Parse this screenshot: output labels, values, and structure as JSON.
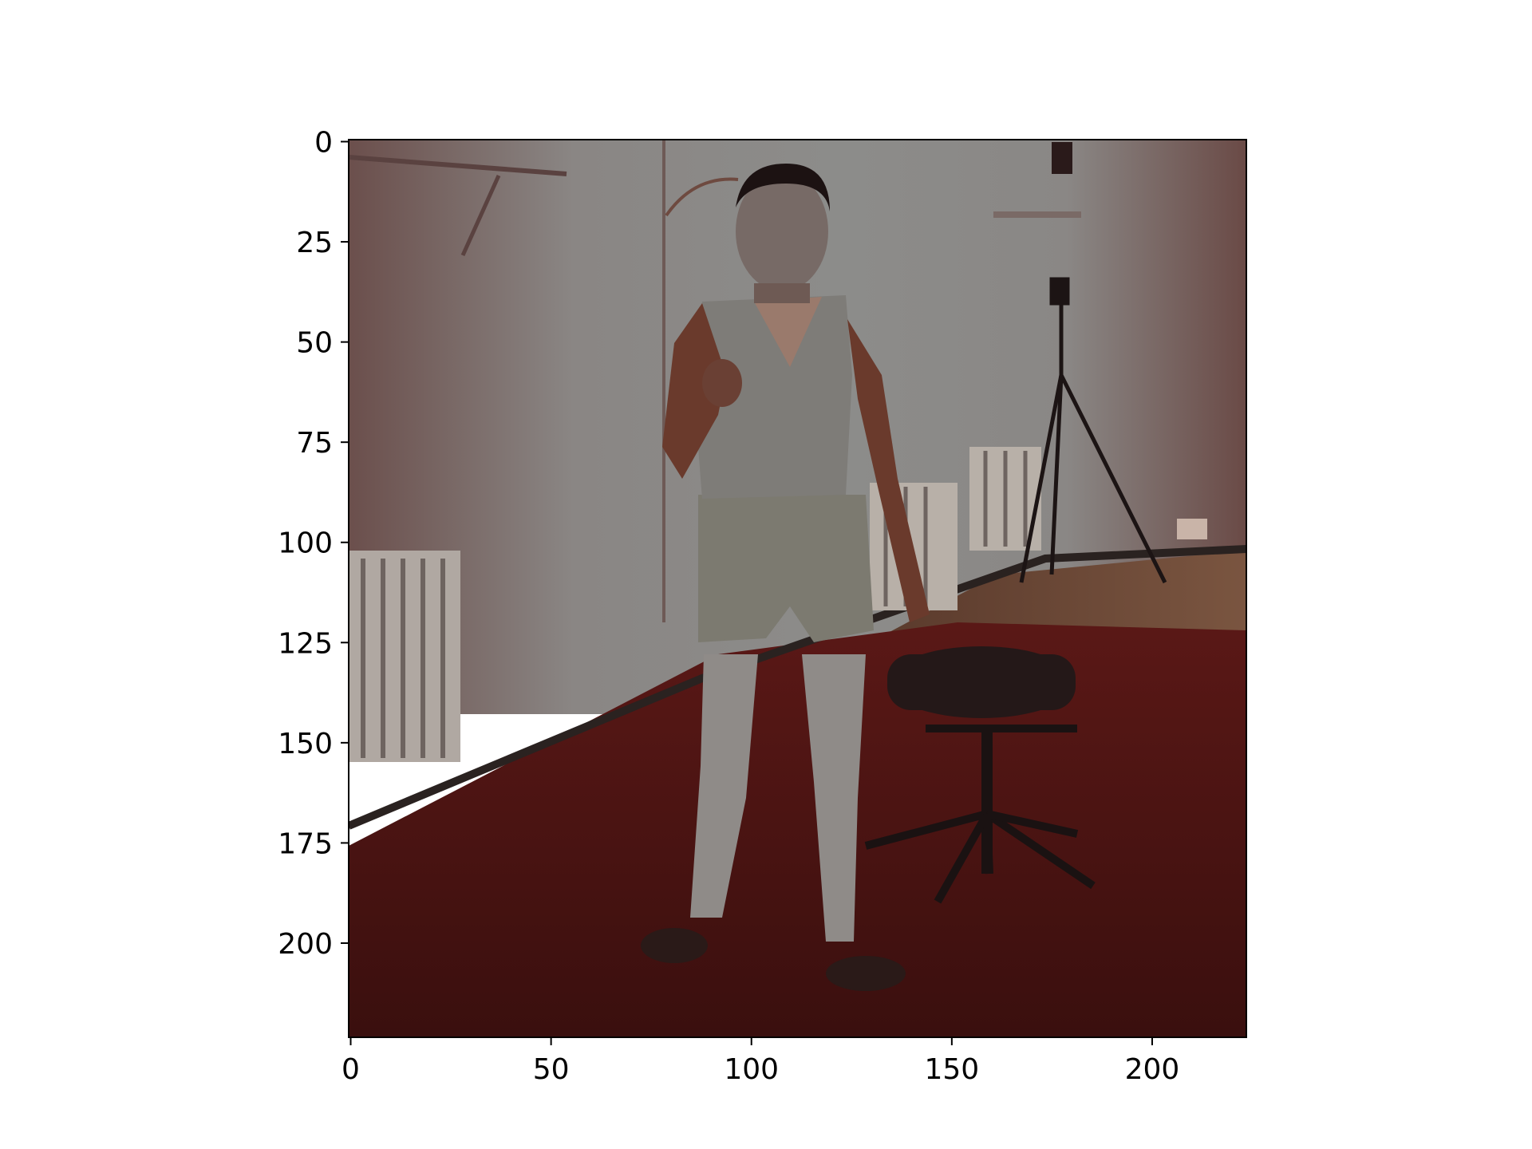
{
  "figure": {
    "type": "image-plot",
    "description_free": true
  },
  "chart_data": {
    "type": "image",
    "x_ticks": [
      "0",
      "50",
      "100",
      "150",
      "200"
    ],
    "y_ticks": [
      "0",
      "25",
      "50",
      "75",
      "100",
      "125",
      "150",
      "175",
      "200"
    ],
    "xlim": [
      -0.5,
      223.5
    ],
    "ylim": [
      223.5,
      -0.5
    ],
    "axis_color": "#000000",
    "grid": false
  },
  "scene": {
    "carpet_color": "#4a1412",
    "wall_color": "#8a8a86",
    "wall_warm_color": "#6e5350",
    "floor_wood_color": "#6b4a38",
    "outfit_color": "#8c8a86",
    "chair_color": "#2a1a1a"
  }
}
